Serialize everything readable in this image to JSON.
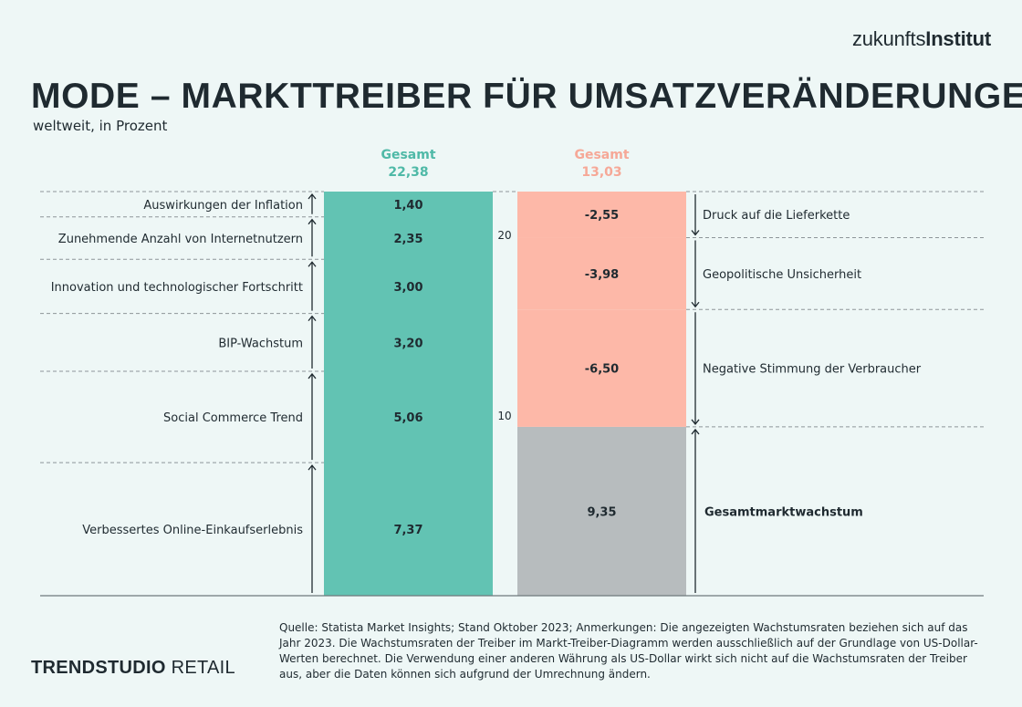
{
  "brand": {
    "light": "zukunfts",
    "bold": "Institut"
  },
  "footer_brand": {
    "bold": "TRENDSTUDIO",
    "light": "RETAIL"
  },
  "source_note": "Quelle: Statista Market Insights; Stand Oktober 2023; Anmerkungen: Die angezeigten Wachstumsraten beziehen sich auf das Jahr 2023. Die Wachstumsraten der Treiber im Markt-Treiber-Diagramm werden ausschließlich auf der Grundlage von US-Dollar-Werten berechnet. Die Verwendung einer anderen Währung als US-Dollar wirkt sich nicht auf die Wachstumsraten der Treiber aus, aber die Daten können sich aufgrund der Umrechnung ändern.",
  "colors": {
    "positive": "#62c3b3",
    "negative": "#fdb8a8",
    "base": "#b7bcbe",
    "positive_text": "#4fb9a7",
    "negative_text": "#f6a897"
  },
  "chart_data": {
    "type": "bar",
    "title": "MODE – MARKTTREIBER FÜR UMSATZVERÄNDERUNGEN",
    "subtitle": "weltweit, in Prozent",
    "ylim": [
      0,
      22.38
    ],
    "y_ticks": [
      {
        "value": 10,
        "label": "10"
      },
      {
        "value": 20,
        "label": "20"
      }
    ],
    "positive": {
      "header": "Gesamt",
      "total": 22.38,
      "total_label": "22,38",
      "segments": [
        {
          "label": "Verbessertes Online-Einkaufserlebnis",
          "value": 7.37,
          "value_label": "7,37"
        },
        {
          "label": "Social Commerce Trend",
          "value": 5.06,
          "value_label": "5,06"
        },
        {
          "label": "BIP-Wachstum",
          "value": 3.2,
          "value_label": "3,20"
        },
        {
          "label": "Innovation und technologischer Fortschritt",
          "value": 3.0,
          "value_label": "3,00"
        },
        {
          "label": "Zunehmende Anzahl von Internetnutzern",
          "value": 2.35,
          "value_label": "2,35"
        },
        {
          "label": "Auswirkungen der Inflation",
          "value": 1.4,
          "value_label": "1,40"
        }
      ]
    },
    "negative": {
      "header": "Gesamt",
      "total": 13.03,
      "total_label": "13,03",
      "base": {
        "label": "Gesamtmarktwachstum",
        "value": 9.35,
        "value_label": "9,35"
      },
      "segments": [
        {
          "label": "Negative Stimmung der Verbraucher",
          "value": -6.5,
          "value_label": "-6,50"
        },
        {
          "label": "Geopolitische Unsicherheit",
          "value": -3.98,
          "value_label": "-3,98"
        },
        {
          "label": "Druck auf die Lieferkette",
          "value": -2.55,
          "value_label": "-2,55"
        }
      ]
    }
  }
}
